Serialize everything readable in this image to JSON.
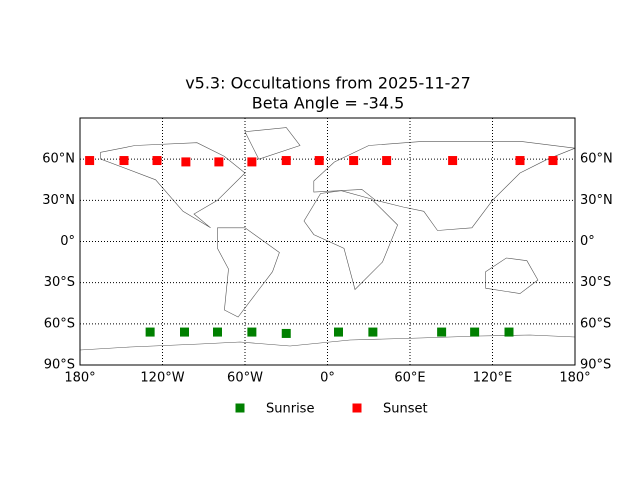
{
  "chart_data": {
    "type": "scatter",
    "title": "v5.3: Occultations from 2025-11-27",
    "subtitle": "Beta Angle = -34.5",
    "xlim": [
      -180,
      180
    ],
    "ylim": [
      -90,
      90
    ],
    "xticks": [
      {
        "value": -180,
        "label": "180°"
      },
      {
        "value": -120,
        "label": "120°W"
      },
      {
        "value": -60,
        "label": "60°W"
      },
      {
        "value": 0,
        "label": "0°"
      },
      {
        "value": 60,
        "label": "60°E"
      },
      {
        "value": 120,
        "label": "120°E"
      },
      {
        "value": 180,
        "label": "180°"
      }
    ],
    "yticks": [
      {
        "value": -90,
        "label": "90°S"
      },
      {
        "value": -60,
        "label": "60°S"
      },
      {
        "value": -30,
        "label": "30°S"
      },
      {
        "value": 0,
        "label": "0°"
      },
      {
        "value": 30,
        "label": "30°N"
      },
      {
        "value": 60,
        "label": "60°N"
      }
    ],
    "grid": true,
    "legend": "bottom",
    "series": [
      {
        "name": "Sunrise",
        "color": "#008000",
        "x": [
          -129,
          -104,
          -80,
          -55,
          -30,
          8,
          33,
          83,
          107,
          132
        ],
        "values": [
          -66,
          -66,
          -66,
          -66,
          -67,
          -66,
          -66,
          -66,
          -66,
          -66
        ]
      },
      {
        "name": "Sunset",
        "color": "#ff0000",
        "x": [
          -173,
          -148,
          -124,
          -103,
          -79,
          -55,
          -30,
          -6,
          19,
          43,
          91,
          140,
          164
        ],
        "values": [
          59,
          59,
          59,
          58,
          58,
          58,
          59,
          59,
          59,
          59,
          59,
          59,
          59
        ]
      }
    ]
  }
}
